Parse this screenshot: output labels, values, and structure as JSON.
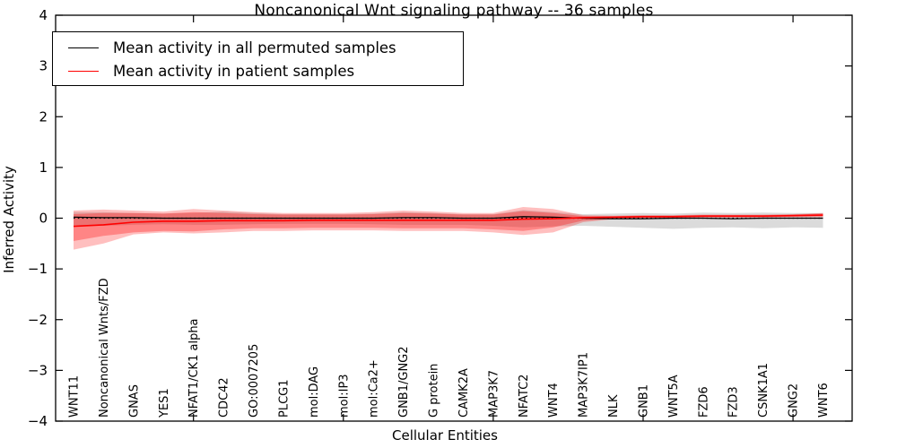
{
  "title": "Noncanonical Wnt signaling pathway -- 36 samples",
  "axes": {
    "x_label": "Cellular Entities",
    "y_label": "Inferred Activity"
  },
  "legend": {
    "entries": [
      {
        "label": "Mean activity in all permuted samples",
        "color": "#000000"
      },
      {
        "label": "Mean activity in patient samples",
        "color": "#ff0000"
      }
    ]
  },
  "chart_data": {
    "type": "line",
    "title": "Noncanonical Wnt signaling pathway -- 36 samples",
    "xlabel": "Cellular Entities",
    "ylabel": "Inferred Activity",
    "ylim": [
      -4,
      4
    ],
    "yticks": [
      -4,
      -3,
      -2,
      -1,
      0,
      1,
      2,
      3,
      4
    ],
    "grid": false,
    "legend_position": "upper left",
    "zero_line": {
      "style": "dotted",
      "color": "#000000",
      "y": 0
    },
    "x_major_tick_indices": [
      4,
      9,
      14,
      19,
      24
    ],
    "categories": [
      "WNT11",
      "Noncanonical Wnts/FZD",
      "GNAS",
      "YES1",
      "NFAT1/CK1 alpha",
      "CDC42",
      "GO:0007205",
      "PLCG1",
      "mol:DAG",
      "mol:IP3",
      "mol:Ca2+",
      "GNB1/GNG2",
      "G protein",
      "CAMK2A",
      "MAP3K7",
      "NFATC2",
      "WNT4",
      "MAP3K7IP1",
      "NLK",
      "GNB1",
      "WNT5A",
      "FZD6",
      "FZD3",
      "CSNK1A1",
      "GNG2",
      "WNT6"
    ],
    "series": [
      {
        "name": "Mean activity in all permuted samples",
        "color": "#000000",
        "width": 1.3,
        "values": [
          0.02,
          0.01,
          0.01,
          0.0,
          0.0,
          0.0,
          0.0,
          0.0,
          0.0,
          0.0,
          0.0,
          0.01,
          0.01,
          0.0,
          0.0,
          0.03,
          0.02,
          0.0,
          -0.01,
          -0.01,
          0.0,
          0.0,
          -0.01,
          0.0,
          0.0,
          0.0
        ]
      },
      {
        "name": "Mean activity in patient samples",
        "color": "#ff0000",
        "width": 1.6,
        "values": [
          -0.16,
          -0.13,
          -0.08,
          -0.06,
          -0.06,
          -0.05,
          -0.05,
          -0.05,
          -0.04,
          -0.04,
          -0.04,
          -0.04,
          -0.04,
          -0.04,
          -0.04,
          -0.02,
          -0.01,
          0.01,
          0.02,
          0.03,
          0.03,
          0.04,
          0.04,
          0.04,
          0.05,
          0.06
        ]
      }
    ],
    "bands": [
      {
        "name": "permuted-std-band",
        "color": "#888888",
        "opacity": 0.3,
        "hi": [
          0.12,
          0.12,
          0.1,
          0.09,
          0.1,
          0.13,
          0.1,
          0.08,
          0.08,
          0.08,
          0.09,
          0.12,
          0.1,
          0.08,
          0.08,
          0.16,
          0.12,
          0.08,
          0.09,
          0.1,
          0.09,
          0.11,
          0.1,
          0.11,
          0.1,
          0.1
        ],
        "lo": [
          -0.14,
          -0.15,
          -0.13,
          -0.12,
          -0.13,
          -0.13,
          -0.12,
          -0.11,
          -0.11,
          -0.11,
          -0.12,
          -0.13,
          -0.13,
          -0.13,
          -0.15,
          -0.18,
          -0.16,
          -0.15,
          -0.17,
          -0.19,
          -0.21,
          -0.19,
          -0.18,
          -0.2,
          -0.18,
          -0.19
        ]
      },
      {
        "name": "patient-std-band-outer",
        "color": "#ff0000",
        "opacity": 0.25,
        "hi": [
          0.15,
          0.17,
          0.15,
          0.13,
          0.18,
          0.15,
          0.12,
          0.1,
          0.1,
          0.1,
          0.12,
          0.15,
          0.13,
          0.1,
          0.1,
          0.22,
          0.18,
          0.06,
          0.05,
          0.06,
          0.06,
          0.07,
          0.07,
          0.07,
          0.08,
          0.1
        ],
        "lo": [
          -0.62,
          -0.5,
          -0.32,
          -0.28,
          -0.3,
          -0.28,
          -0.25,
          -0.25,
          -0.24,
          -0.24,
          -0.24,
          -0.25,
          -0.25,
          -0.25,
          -0.28,
          -0.33,
          -0.28,
          -0.08,
          -0.02,
          0.0,
          0.0,
          0.01,
          0.01,
          0.01,
          0.02,
          0.02
        ]
      },
      {
        "name": "patient-std-band-inner",
        "color": "#ff0000",
        "opacity": 0.3,
        "hi": [
          0.08,
          0.1,
          0.1,
          0.09,
          0.12,
          0.1,
          0.08,
          0.07,
          0.07,
          0.07,
          0.08,
          0.1,
          0.09,
          0.07,
          0.07,
          0.14,
          0.1,
          0.04,
          0.04,
          0.05,
          0.05,
          0.06,
          0.06,
          0.06,
          0.07,
          0.09
        ],
        "lo": [
          -0.45,
          -0.35,
          -0.28,
          -0.25,
          -0.26,
          -0.22,
          -0.2,
          -0.2,
          -0.19,
          -0.19,
          -0.19,
          -0.2,
          -0.2,
          -0.2,
          -0.22,
          -0.25,
          -0.18,
          -0.05,
          -0.01,
          0.01,
          0.01,
          0.02,
          0.02,
          0.02,
          0.03,
          0.04
        ]
      }
    ]
  }
}
